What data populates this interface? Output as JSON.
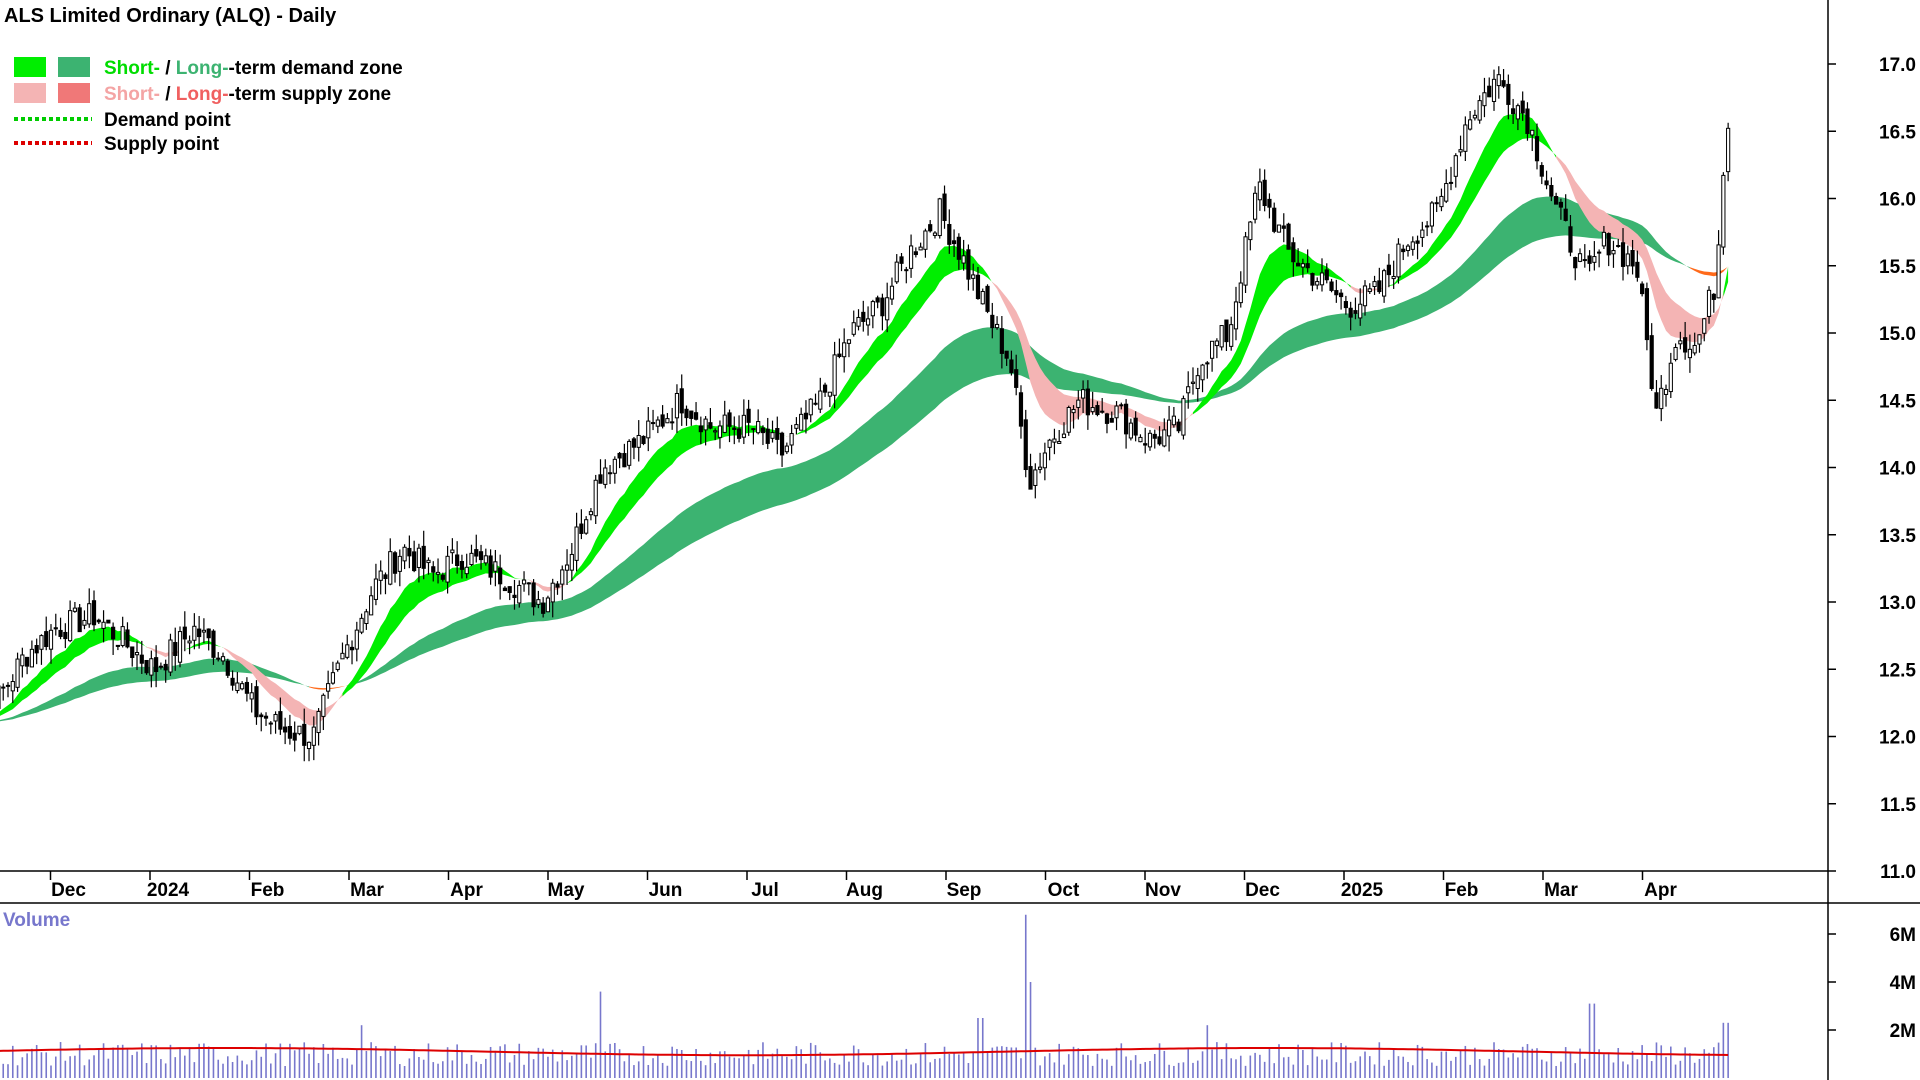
{
  "chart_data": {
    "type": "candlestick",
    "title": "ALS Limited Ordinary (ALQ) - Daily",
    "colors": {
      "short_demand": "#00ee00",
      "long_demand": "#3cb371",
      "short_supply": "#f4b4b4",
      "long_supply": "#f07878",
      "overlap": "#ff6a1a",
      "demand_point": "#00cc00",
      "supply_point": "#dd0000",
      "candle": "#000000",
      "volume_bar": "#7777cc",
      "volume_avg": "#dd0000"
    },
    "legend": {
      "row1": {
        "short": "Short-",
        "sep": " / ",
        "long": "Long-",
        "rest": "-term demand zone"
      },
      "row2": {
        "short": "Short-",
        "sep": " / ",
        "long": "Long-",
        "rest": "-term supply zone"
      },
      "row3": "Demand point",
      "row4": "Supply point"
    },
    "price_axis": {
      "min": 11.0,
      "max": 17.0,
      "ticks": [
        "11.0",
        "11.5",
        "12.0",
        "12.5",
        "13.0",
        "13.5",
        "14.0",
        "14.5",
        "15.0",
        "15.5",
        "16.0",
        "16.5",
        "17.0"
      ]
    },
    "x_labels": [
      {
        "label": "Dec",
        "month_index": 1
      },
      {
        "label": "2024",
        "month_index": 2
      },
      {
        "label": "Feb",
        "month_index": 3
      },
      {
        "label": "Mar",
        "month_index": 4
      },
      {
        "label": "Apr",
        "month_index": 5
      },
      {
        "label": "May",
        "month_index": 6
      },
      {
        "label": "Jun",
        "month_index": 7
      },
      {
        "label": "Jul",
        "month_index": 8
      },
      {
        "label": "Aug",
        "month_index": 9
      },
      {
        "label": "Sep",
        "month_index": 10
      },
      {
        "label": "Oct",
        "month_index": 11
      },
      {
        "label": "Nov",
        "month_index": 12
      },
      {
        "label": "Dec",
        "month_index": 13
      },
      {
        "label": "2025",
        "month_index": 14
      },
      {
        "label": "Feb",
        "month_index": 15
      },
      {
        "label": "Mar",
        "month_index": 16
      },
      {
        "label": "Apr",
        "month_index": 17
      }
    ],
    "price_path": [
      [
        0.0,
        12.1
      ],
      [
        0.35,
        12.3
      ],
      [
        0.6,
        12.6
      ],
      [
        0.9,
        12.8
      ],
      [
        1.3,
        12.9
      ],
      [
        1.6,
        12.7
      ],
      [
        1.9,
        12.5
      ],
      [
        2.3,
        12.8
      ],
      [
        2.6,
        12.6
      ],
      [
        2.9,
        12.2
      ],
      [
        3.2,
        12.05
      ],
      [
        3.5,
        12.0
      ],
      [
        3.8,
        12.6
      ],
      [
        4.1,
        13.1
      ],
      [
        4.4,
        13.4
      ],
      [
        4.7,
        13.2
      ],
      [
        5.0,
        13.35
      ],
      [
        5.4,
        13.2
      ],
      [
        5.8,
        13.0
      ],
      [
        6.1,
        13.4
      ],
      [
        6.4,
        14.0
      ],
      [
        6.8,
        14.2
      ],
      [
        7.2,
        14.5
      ],
      [
        7.5,
        14.3
      ],
      [
        7.9,
        14.3
      ],
      [
        8.2,
        14.1
      ],
      [
        8.6,
        14.5
      ],
      [
        8.9,
        15.0
      ],
      [
        9.2,
        15.2
      ],
      [
        9.5,
        15.6
      ],
      [
        9.8,
        15.9
      ],
      [
        10.0,
        15.6
      ],
      [
        10.3,
        15.1
      ],
      [
        10.5,
        14.8
      ],
      [
        10.7,
        13.9
      ],
      [
        10.9,
        14.2
      ],
      [
        11.2,
        14.5
      ],
      [
        11.6,
        14.4
      ],
      [
        11.9,
        14.2
      ],
      [
        12.2,
        14.3
      ],
      [
        12.4,
        14.8
      ],
      [
        12.7,
        15.0
      ],
      [
        13.0,
        16.1
      ],
      [
        13.3,
        15.6
      ],
      [
        13.6,
        15.4
      ],
      [
        13.9,
        15.2
      ],
      [
        14.2,
        15.3
      ],
      [
        14.5,
        15.7
      ],
      [
        14.8,
        15.9
      ],
      [
        15.1,
        16.6
      ],
      [
        15.4,
        16.9
      ],
      [
        15.7,
        16.6
      ],
      [
        16.0,
        15.9
      ],
      [
        16.3,
        15.4
      ],
      [
        16.5,
        15.7
      ],
      [
        16.8,
        15.5
      ],
      [
        17.0,
        14.4
      ],
      [
        17.2,
        15.0
      ],
      [
        17.4,
        14.9
      ],
      [
        17.6,
        15.4
      ],
      [
        17.7,
        16.6
      ]
    ],
    "volume_axis": {
      "max": 7,
      "ticks": [
        {
          "label": "2M",
          "value": 2
        },
        {
          "label": "4M",
          "value": 4
        },
        {
          "label": "6M",
          "value": 6
        }
      ]
    },
    "volume_title": "Volume",
    "volume_average_millions": 1.1,
    "volume_spikes": [
      {
        "month_index": 4.0,
        "value_millions": 2.2
      },
      {
        "month_index": 6.4,
        "value_millions": 3.6
      },
      {
        "month_index": 10.65,
        "value_millions": 6.8
      },
      {
        "month_index": 10.7,
        "value_millions": 4.0
      },
      {
        "month_index": 10.2,
        "value_millions": 2.5
      },
      {
        "month_index": 12.5,
        "value_millions": 2.2
      },
      {
        "month_index": 16.35,
        "value_millions": 3.1
      },
      {
        "month_index": 17.7,
        "value_millions": 2.3
      }
    ]
  }
}
